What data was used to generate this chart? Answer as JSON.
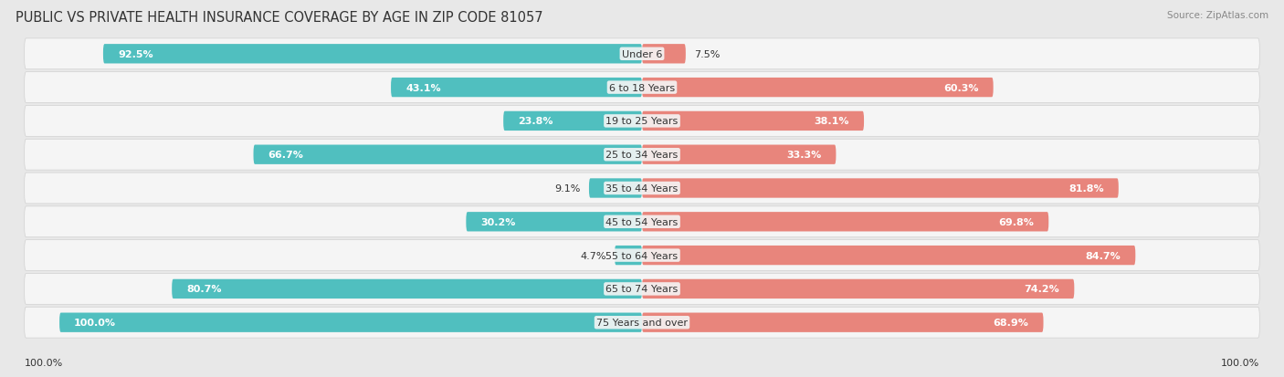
{
  "title": "PUBLIC VS PRIVATE HEALTH INSURANCE COVERAGE BY AGE IN ZIP CODE 81057",
  "source": "Source: ZipAtlas.com",
  "categories": [
    "Under 6",
    "6 to 18 Years",
    "19 to 25 Years",
    "25 to 34 Years",
    "35 to 44 Years",
    "45 to 54 Years",
    "55 to 64 Years",
    "65 to 74 Years",
    "75 Years and over"
  ],
  "public_values": [
    92.5,
    43.1,
    23.8,
    66.7,
    9.1,
    30.2,
    4.7,
    80.7,
    100.0
  ],
  "private_values": [
    7.5,
    60.3,
    38.1,
    33.3,
    81.8,
    69.8,
    84.7,
    74.2,
    68.9
  ],
  "public_color": "#50bfbf",
  "private_color": "#e8857c",
  "background_color": "#e8e8e8",
  "row_bg_color": "#f5f5f5",
  "row_sep_color": "#d0d0d0",
  "title_fontsize": 10.5,
  "label_fontsize": 8,
  "category_fontsize": 8,
  "legend_fontsize": 8.5,
  "source_fontsize": 7.5
}
